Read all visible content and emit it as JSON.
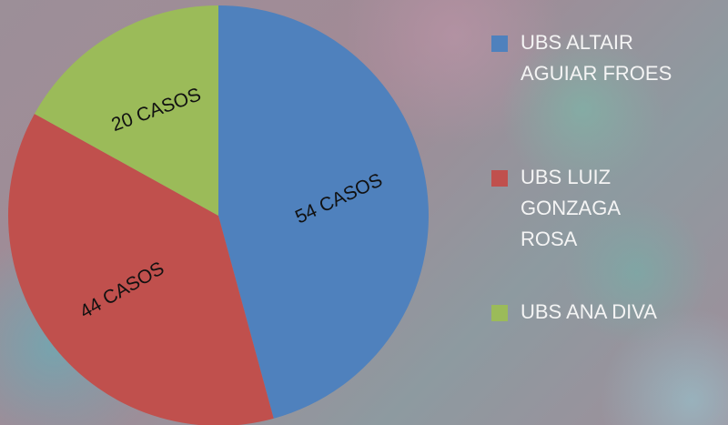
{
  "chart_data": {
    "type": "pie",
    "categories": [
      "UBS ALTAIR AGUIAR FROES",
      "UBS LUIZ GONZAGA ROSA",
      "UBS ANA DIVA"
    ],
    "values": [
      54,
      44,
      20
    ],
    "value_labels": [
      "54 CASOS",
      "44 CASOS",
      "20 CASOS"
    ],
    "colors": [
      "#4f81bd",
      "#c0504d",
      "#9bbb59"
    ],
    "legend": "right"
  }
}
